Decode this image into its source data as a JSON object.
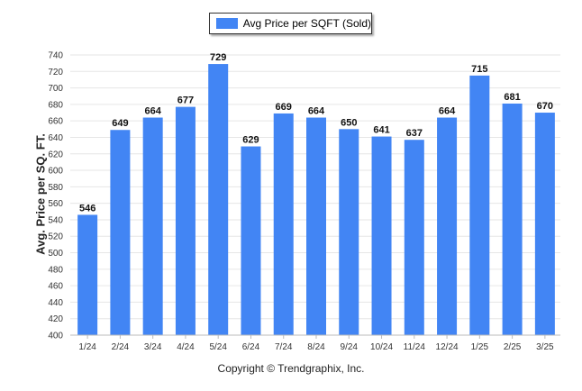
{
  "chart_data": {
    "type": "bar",
    "title": "",
    "xlabel": "",
    "ylabel": "Avg. Price per SQ. FT.",
    "legend": {
      "position": "top-center",
      "entries": [
        "Avg Price per SQFT (Sold)"
      ]
    },
    "categories": [
      "1/24",
      "2/24",
      "3/24",
      "4/24",
      "5/24",
      "6/24",
      "7/24",
      "8/24",
      "9/24",
      "10/24",
      "11/24",
      "12/24",
      "1/25",
      "2/25",
      "3/25"
    ],
    "series": [
      {
        "name": "Avg Price per SQFT (Sold)",
        "color": "#4285f4",
        "values": [
          546,
          649,
          664,
          677,
          729,
          629,
          669,
          664,
          650,
          641,
          637,
          664,
          715,
          681,
          670
        ]
      }
    ],
    "ylim": [
      400,
      740
    ],
    "yticks": [
      400,
      420,
      440,
      460,
      480,
      500,
      520,
      540,
      560,
      580,
      600,
      620,
      640,
      660,
      680,
      700,
      720,
      740
    ],
    "grid": true,
    "data_labels": true
  },
  "footer": {
    "copyright": "Copyright © Trendgraphix, Inc."
  }
}
